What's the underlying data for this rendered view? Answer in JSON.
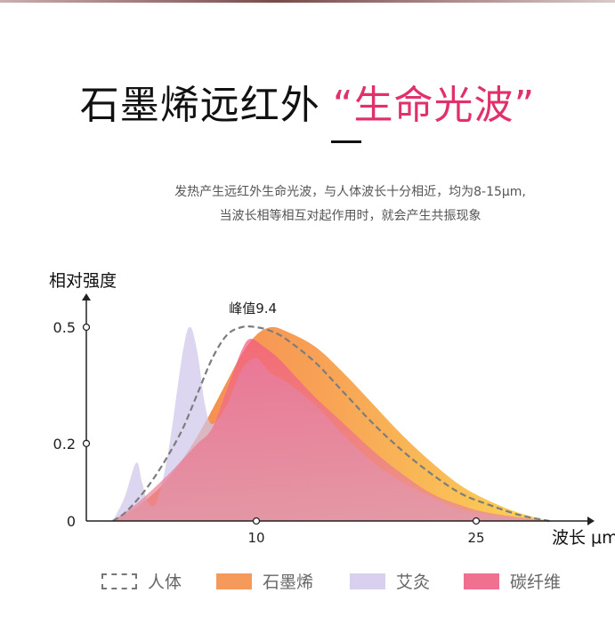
{
  "header": {
    "title_main": "石墨烯远红外",
    "title_accent": "“生命光波”",
    "subtitle_line1": "发热产生远红外生命光波，与人体波长十分相近，均为8-15μm,",
    "subtitle_line2": "当波长相等相互对起作用时，就会产生共振现象"
  },
  "colors": {
    "accent": "#e0316b",
    "graphene": "#f5a14a",
    "moxa": "#d8d0ee",
    "carbon": "#f0708f",
    "human": "#808080"
  },
  "chart_data": {
    "type": "area",
    "ylabel": "相对强度",
    "xlabel": "波长 μm",
    "xlim": [
      0,
      30
    ],
    "ylim": [
      0,
      0.62
    ],
    "xticks": [
      10,
      25
    ],
    "yticks": [
      0,
      0.2,
      0.5
    ],
    "yticklabels": [
      "0",
      "0.2",
      "0.5"
    ],
    "annotation": {
      "text": "峰值9.4",
      "x": 9.4,
      "y": 0.5
    },
    "series": [
      {
        "name": "人体",
        "style": "dashed",
        "points": [
          [
            0.2,
            0
          ],
          [
            1,
            0.02
          ],
          [
            2,
            0.06
          ],
          [
            3,
            0.11
          ],
          [
            4,
            0.17
          ],
          [
            5,
            0.24
          ],
          [
            6,
            0.33
          ],
          [
            7,
            0.42
          ],
          [
            8,
            0.48
          ],
          [
            9,
            0.5
          ],
          [
            10,
            0.5
          ],
          [
            11,
            0.49
          ],
          [
            12,
            0.47
          ],
          [
            14,
            0.41
          ],
          [
            16,
            0.33
          ],
          [
            18,
            0.25
          ],
          [
            20,
            0.18
          ],
          [
            22,
            0.12
          ],
          [
            24,
            0.07
          ],
          [
            26,
            0.04
          ],
          [
            28,
            0.015
          ],
          [
            30,
            0
          ]
        ]
      },
      {
        "name": "石墨烯",
        "points": [
          [
            0.2,
            0
          ],
          [
            2,
            0.04
          ],
          [
            4,
            0.11
          ],
          [
            6,
            0.22
          ],
          [
            8,
            0.36
          ],
          [
            9,
            0.43
          ],
          [
            10,
            0.48
          ],
          [
            11,
            0.5
          ],
          [
            12,
            0.49
          ],
          [
            14,
            0.45
          ],
          [
            16,
            0.38
          ],
          [
            18,
            0.3
          ],
          [
            20,
            0.22
          ],
          [
            22,
            0.15
          ],
          [
            24,
            0.09
          ],
          [
            26,
            0.05
          ],
          [
            28,
            0.02
          ],
          [
            30,
            0
          ]
        ]
      },
      {
        "name": "艾灸",
        "points": [
          [
            0.2,
            0
          ],
          [
            1,
            0.06
          ],
          [
            1.8,
            0.15
          ],
          [
            2.2,
            0.1
          ],
          [
            2.6,
            0.05
          ],
          [
            3.2,
            0.05
          ],
          [
            4,
            0.18
          ],
          [
            5,
            0.44
          ],
          [
            5.5,
            0.5
          ],
          [
            6,
            0.43
          ],
          [
            6.5,
            0.3
          ],
          [
            7,
            0.25
          ],
          [
            8,
            0.3
          ],
          [
            9,
            0.39
          ],
          [
            10,
            0.42
          ],
          [
            11,
            0.38
          ],
          [
            12,
            0.36
          ],
          [
            14,
            0.3
          ],
          [
            16,
            0.22
          ],
          [
            18,
            0.15
          ],
          [
            20,
            0.1
          ],
          [
            22,
            0.06
          ],
          [
            24,
            0.03
          ],
          [
            27,
            0.01
          ],
          [
            30,
            0
          ]
        ]
      },
      {
        "name": "碳纤维",
        "points": [
          [
            0.2,
            0
          ],
          [
            2,
            0.05
          ],
          [
            4,
            0.12
          ],
          [
            5,
            0.16
          ],
          [
            6,
            0.2
          ],
          [
            7,
            0.24
          ],
          [
            8,
            0.34
          ],
          [
            9,
            0.44
          ],
          [
            9.6,
            0.47
          ],
          [
            10.5,
            0.45
          ],
          [
            11.5,
            0.42
          ],
          [
            12.5,
            0.38
          ],
          [
            14,
            0.32
          ],
          [
            16,
            0.25
          ],
          [
            18,
            0.18
          ],
          [
            20,
            0.12
          ],
          [
            22,
            0.07
          ],
          [
            24,
            0.04
          ],
          [
            26,
            0.02
          ],
          [
            30,
            0
          ]
        ]
      }
    ]
  }
}
